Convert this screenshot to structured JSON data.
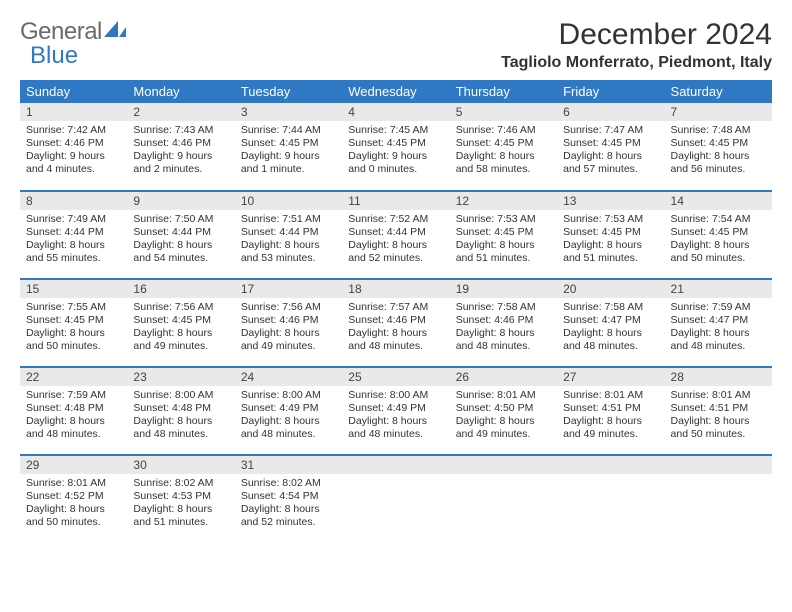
{
  "brand": {
    "part1": "General",
    "part2": "Blue"
  },
  "title": "December 2024",
  "location": "Tagliolo Monferrato, Piedmont, Italy",
  "colors": {
    "header_bg": "#2f78c4",
    "header_text": "#ffffff",
    "daynum_bg": "#e9e9e9",
    "border": "#2f78c4",
    "text": "#333333",
    "logo_gray": "#6a6a6a",
    "logo_blue": "#2f78c4",
    "page_bg": "#ffffff"
  },
  "typography": {
    "title_fontsize": 30,
    "location_fontsize": 16,
    "weekday_fontsize": 13,
    "daynum_fontsize": 12,
    "cell_fontsize": 10.5
  },
  "weekdays": [
    "Sunday",
    "Monday",
    "Tuesday",
    "Wednesday",
    "Thursday",
    "Friday",
    "Saturday"
  ],
  "weeks": [
    [
      {
        "day": "1",
        "sunrise": "Sunrise: 7:42 AM",
        "sunset": "Sunset: 4:46 PM",
        "daylight": "Daylight: 9 hours and 4 minutes."
      },
      {
        "day": "2",
        "sunrise": "Sunrise: 7:43 AM",
        "sunset": "Sunset: 4:46 PM",
        "daylight": "Daylight: 9 hours and 2 minutes."
      },
      {
        "day": "3",
        "sunrise": "Sunrise: 7:44 AM",
        "sunset": "Sunset: 4:45 PM",
        "daylight": "Daylight: 9 hours and 1 minute."
      },
      {
        "day": "4",
        "sunrise": "Sunrise: 7:45 AM",
        "sunset": "Sunset: 4:45 PM",
        "daylight": "Daylight: 9 hours and 0 minutes."
      },
      {
        "day": "5",
        "sunrise": "Sunrise: 7:46 AM",
        "sunset": "Sunset: 4:45 PM",
        "daylight": "Daylight: 8 hours and 58 minutes."
      },
      {
        "day": "6",
        "sunrise": "Sunrise: 7:47 AM",
        "sunset": "Sunset: 4:45 PM",
        "daylight": "Daylight: 8 hours and 57 minutes."
      },
      {
        "day": "7",
        "sunrise": "Sunrise: 7:48 AM",
        "sunset": "Sunset: 4:45 PM",
        "daylight": "Daylight: 8 hours and 56 minutes."
      }
    ],
    [
      {
        "day": "8",
        "sunrise": "Sunrise: 7:49 AM",
        "sunset": "Sunset: 4:44 PM",
        "daylight": "Daylight: 8 hours and 55 minutes."
      },
      {
        "day": "9",
        "sunrise": "Sunrise: 7:50 AM",
        "sunset": "Sunset: 4:44 PM",
        "daylight": "Daylight: 8 hours and 54 minutes."
      },
      {
        "day": "10",
        "sunrise": "Sunrise: 7:51 AM",
        "sunset": "Sunset: 4:44 PM",
        "daylight": "Daylight: 8 hours and 53 minutes."
      },
      {
        "day": "11",
        "sunrise": "Sunrise: 7:52 AM",
        "sunset": "Sunset: 4:44 PM",
        "daylight": "Daylight: 8 hours and 52 minutes."
      },
      {
        "day": "12",
        "sunrise": "Sunrise: 7:53 AM",
        "sunset": "Sunset: 4:45 PM",
        "daylight": "Daylight: 8 hours and 51 minutes."
      },
      {
        "day": "13",
        "sunrise": "Sunrise: 7:53 AM",
        "sunset": "Sunset: 4:45 PM",
        "daylight": "Daylight: 8 hours and 51 minutes."
      },
      {
        "day": "14",
        "sunrise": "Sunrise: 7:54 AM",
        "sunset": "Sunset: 4:45 PM",
        "daylight": "Daylight: 8 hours and 50 minutes."
      }
    ],
    [
      {
        "day": "15",
        "sunrise": "Sunrise: 7:55 AM",
        "sunset": "Sunset: 4:45 PM",
        "daylight": "Daylight: 8 hours and 50 minutes."
      },
      {
        "day": "16",
        "sunrise": "Sunrise: 7:56 AM",
        "sunset": "Sunset: 4:45 PM",
        "daylight": "Daylight: 8 hours and 49 minutes."
      },
      {
        "day": "17",
        "sunrise": "Sunrise: 7:56 AM",
        "sunset": "Sunset: 4:46 PM",
        "daylight": "Daylight: 8 hours and 49 minutes."
      },
      {
        "day": "18",
        "sunrise": "Sunrise: 7:57 AM",
        "sunset": "Sunset: 4:46 PM",
        "daylight": "Daylight: 8 hours and 48 minutes."
      },
      {
        "day": "19",
        "sunrise": "Sunrise: 7:58 AM",
        "sunset": "Sunset: 4:46 PM",
        "daylight": "Daylight: 8 hours and 48 minutes."
      },
      {
        "day": "20",
        "sunrise": "Sunrise: 7:58 AM",
        "sunset": "Sunset: 4:47 PM",
        "daylight": "Daylight: 8 hours and 48 minutes."
      },
      {
        "day": "21",
        "sunrise": "Sunrise: 7:59 AM",
        "sunset": "Sunset: 4:47 PM",
        "daylight": "Daylight: 8 hours and 48 minutes."
      }
    ],
    [
      {
        "day": "22",
        "sunrise": "Sunrise: 7:59 AM",
        "sunset": "Sunset: 4:48 PM",
        "daylight": "Daylight: 8 hours and 48 minutes."
      },
      {
        "day": "23",
        "sunrise": "Sunrise: 8:00 AM",
        "sunset": "Sunset: 4:48 PM",
        "daylight": "Daylight: 8 hours and 48 minutes."
      },
      {
        "day": "24",
        "sunrise": "Sunrise: 8:00 AM",
        "sunset": "Sunset: 4:49 PM",
        "daylight": "Daylight: 8 hours and 48 minutes."
      },
      {
        "day": "25",
        "sunrise": "Sunrise: 8:00 AM",
        "sunset": "Sunset: 4:49 PM",
        "daylight": "Daylight: 8 hours and 48 minutes."
      },
      {
        "day": "26",
        "sunrise": "Sunrise: 8:01 AM",
        "sunset": "Sunset: 4:50 PM",
        "daylight": "Daylight: 8 hours and 49 minutes."
      },
      {
        "day": "27",
        "sunrise": "Sunrise: 8:01 AM",
        "sunset": "Sunset: 4:51 PM",
        "daylight": "Daylight: 8 hours and 49 minutes."
      },
      {
        "day": "28",
        "sunrise": "Sunrise: 8:01 AM",
        "sunset": "Sunset: 4:51 PM",
        "daylight": "Daylight: 8 hours and 50 minutes."
      }
    ],
    [
      {
        "day": "29",
        "sunrise": "Sunrise: 8:01 AM",
        "sunset": "Sunset: 4:52 PM",
        "daylight": "Daylight: 8 hours and 50 minutes."
      },
      {
        "day": "30",
        "sunrise": "Sunrise: 8:02 AM",
        "sunset": "Sunset: 4:53 PM",
        "daylight": "Daylight: 8 hours and 51 minutes."
      },
      {
        "day": "31",
        "sunrise": "Sunrise: 8:02 AM",
        "sunset": "Sunset: 4:54 PM",
        "daylight": "Daylight: 8 hours and 52 minutes."
      },
      {
        "day": "",
        "sunrise": "",
        "sunset": "",
        "daylight": "",
        "empty": true
      },
      {
        "day": "",
        "sunrise": "",
        "sunset": "",
        "daylight": "",
        "empty": true
      },
      {
        "day": "",
        "sunrise": "",
        "sunset": "",
        "daylight": "",
        "empty": true
      },
      {
        "day": "",
        "sunrise": "",
        "sunset": "",
        "daylight": "",
        "empty": true
      }
    ]
  ]
}
